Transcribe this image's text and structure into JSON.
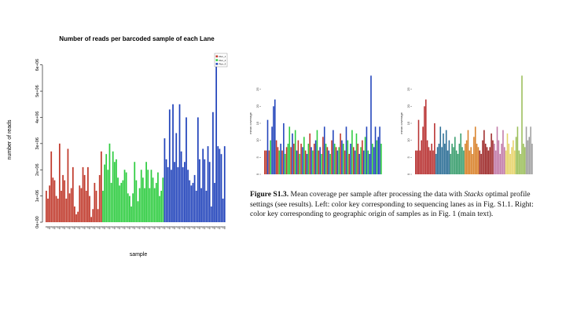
{
  "left_chart": {
    "title": "Number of reads per barcoded sample of each Lane",
    "ylabel": "number of reads",
    "xlabel": "sample"
  },
  "caption": {
    "label": "Figure S1.3.",
    "text_a": " Mean coverage per sample after processing the data with ",
    "stacks": "Stacks",
    "text_b": " optimal profile settings (see results).  Left: color key corresponding to sequencing lanes as in Fig. S1.1. Right: color key corresponding to geographic origin of samples as in Fig. 1 (main text)."
  },
  "colors": {
    "lane1": "#c0392b",
    "lane2": "#2ecc40",
    "lane3": "#2244bb"
  },
  "chart_data": [
    {
      "id": "reads-per-sample",
      "type": "bar",
      "title": "Number of reads per barcoded sample of each Lane",
      "xlabel": "sample",
      "ylabel": "number of reads",
      "ylim": [
        0,
        6500000
      ],
      "yticks": [
        0,
        1000000,
        2000000,
        3000000,
        4000000,
        5000000,
        6000000
      ],
      "ytick_labels": [
        "0e+00",
        "1e+06",
        "2e+06",
        "3e+06",
        "4e+06",
        "5e+06",
        "6e+06"
      ],
      "legend": {
        "entries": [
          "Run_1",
          "Run_2",
          "Run_3"
        ],
        "position": "top-right"
      },
      "series": [
        {
          "name": "Run_1",
          "color": "#c0392b",
          "values": [
            1200000,
            900000,
            1400000,
            2700000,
            1700000,
            1600000,
            1000000,
            900000,
            3000000,
            1200000,
            1800000,
            1600000,
            900000,
            2800000,
            1100000,
            1300000,
            2100000,
            600000,
            300000,
            400000,
            1400000,
            1300000,
            2100000,
            1800000,
            1200000,
            2100000,
            1000000,
            200000,
            500000,
            1500000,
            1200000,
            500000,
            1800000,
            2700000
          ]
        },
        {
          "name": "Run_2",
          "color": "#2ecc40",
          "values": [
            1200000,
            2200000,
            2600000,
            2000000,
            3000000,
            1500000,
            2700000,
            2300000,
            2400000,
            1700000,
            1400000,
            1500000,
            1600000,
            2000000,
            1900000,
            1100000,
            1000000,
            600000,
            1100000,
            2300000,
            1600000,
            800000,
            1300000,
            2000000,
            1700000,
            1300000,
            2300000,
            2000000,
            1300000,
            2000000,
            1700000,
            1300000,
            1500000,
            1900000,
            1000000,
            1200000,
            1700000
          ]
        },
        {
          "name": "Run_3",
          "color": "#2244bb",
          "values": [
            3200000,
            2400000,
            2100000,
            4300000,
            2000000,
            4500000,
            2300000,
            3400000,
            2100000,
            4500000,
            2700000,
            2100000,
            2300000,
            4000000,
            2000000,
            1600000,
            1400000,
            1500000,
            1800000,
            1200000,
            4000000,
            2400000,
            1300000,
            2800000,
            2400000,
            1200000,
            2900000,
            2300000,
            600000,
            4200000,
            1500000,
            6400000,
            2900000,
            2800000,
            2600000,
            900000,
            2900000
          ]
        }
      ]
    },
    {
      "id": "coverage-by-lane",
      "type": "bar",
      "ylabel": "mean coverage",
      "ylim": [
        0,
        30
      ],
      "yticks": [
        0,
        5,
        10,
        15,
        20,
        25
      ],
      "values": [
        7,
        7,
        16,
        7,
        10,
        14,
        20,
        22,
        10,
        8,
        7,
        9,
        7,
        15,
        6,
        8,
        9,
        14,
        8,
        12,
        9,
        13,
        7,
        10,
        6,
        9,
        8,
        11,
        7,
        6,
        9,
        12,
        8,
        7,
        9,
        10,
        13,
        7,
        8,
        6,
        11,
        14,
        9,
        8,
        7,
        6,
        10,
        13,
        9,
        8,
        7,
        8,
        12,
        10,
        9,
        7,
        14,
        10,
        6,
        9,
        13,
        8,
        7,
        12,
        9,
        6,
        8,
        10,
        7,
        11,
        14,
        7,
        6,
        29,
        9,
        8,
        14,
        10,
        11,
        14,
        9
      ],
      "colors": [
        "#c0392b",
        "#c0392b",
        "#2244bb",
        "#c0392b",
        "#2ecc40",
        "#2244bb",
        "#2244bb",
        "#2244bb",
        "#c0392b",
        "#c0392b",
        "#2ecc40",
        "#2244bb",
        "#c0392b",
        "#2244bb",
        "#2ecc40",
        "#c0392b",
        "#2ecc40",
        "#2ecc40",
        "#c0392b",
        "#2244bb",
        "#c0392b",
        "#2ecc40",
        "#2244bb",
        "#c0392b",
        "#2ecc40",
        "#c0392b",
        "#2244bb",
        "#2ecc40",
        "#c0392b",
        "#2244bb",
        "#2ecc40",
        "#c0392b",
        "#2244bb",
        "#2ecc40",
        "#c0392b",
        "#2244bb",
        "#2ecc40",
        "#c0392b",
        "#2244bb",
        "#2ecc40",
        "#c0392b",
        "#2244bb",
        "#2ecc40",
        "#c0392b",
        "#2244bb",
        "#2ecc40",
        "#c0392b",
        "#2244bb",
        "#2ecc40",
        "#c0392b",
        "#2244bb",
        "#2ecc40",
        "#c0392b",
        "#2244bb",
        "#2ecc40",
        "#c0392b",
        "#2244bb",
        "#2ecc40",
        "#c0392b",
        "#2244bb",
        "#2ecc40",
        "#c0392b",
        "#2244bb",
        "#2ecc40",
        "#c0392b",
        "#2244bb",
        "#2ecc40",
        "#c0392b",
        "#2244bb",
        "#2ecc40",
        "#2244bb",
        "#2ecc40",
        "#2244bb",
        "#2244bb",
        "#2ecc40",
        "#2244bb",
        "#2244bb",
        "#2ecc40",
        "#2244bb",
        "#2244bb",
        "#2ecc40"
      ]
    },
    {
      "id": "coverage-by-origin",
      "type": "bar",
      "ylabel": "mean coverage",
      "ylim": [
        0,
        30
      ],
      "yticks": [
        0,
        5,
        10,
        15,
        20,
        25
      ],
      "values": [
        7,
        7,
        16,
        7,
        10,
        14,
        20,
        22,
        10,
        8,
        7,
        9,
        7,
        15,
        6,
        8,
        9,
        14,
        8,
        12,
        9,
        13,
        7,
        10,
        6,
        9,
        8,
        11,
        7,
        6,
        9,
        12,
        8,
        7,
        9,
        10,
        13,
        7,
        8,
        6,
        11,
        14,
        9,
        8,
        7,
        6,
        10,
        13,
        9,
        8,
        7,
        8,
        12,
        10,
        9,
        7,
        14,
        10,
        6,
        9,
        13,
        8,
        7,
        12,
        9,
        6,
        8,
        10,
        7,
        11,
        14,
        7,
        6,
        29,
        9,
        8,
        14,
        10,
        11,
        14,
        9
      ],
      "groups": [
        {
          "count": 14,
          "color": "#b83232"
        },
        {
          "count": 10,
          "color": "#2e6f96"
        },
        {
          "count": 10,
          "color": "#3a9e6e"
        },
        {
          "count": 10,
          "color": "#d9822b"
        },
        {
          "count": 10,
          "color": "#9e2a2a"
        },
        {
          "count": 8,
          "color": "#c27ba8"
        },
        {
          "count": 7,
          "color": "#e6d36a"
        },
        {
          "count": 7,
          "color": "#9bbf5a"
        },
        {
          "count": 5,
          "color": "#a0a0a0"
        }
      ]
    }
  ]
}
